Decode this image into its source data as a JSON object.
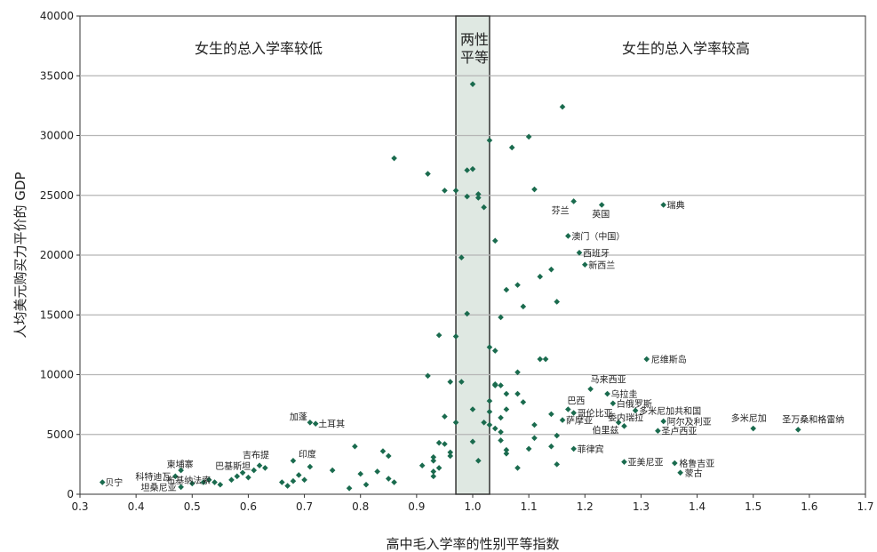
{
  "chart_data": {
    "type": "scatter",
    "xlabel": "高中毛入学率的性别平等指数",
    "ylabel": "人均美元购买力平价的 GDP",
    "xlim": [
      0.3,
      1.7
    ],
    "ylim": [
      0,
      40000
    ],
    "x_ticks": [
      "0.3",
      "0.4",
      "0.5",
      "0.6",
      "0.7",
      "0.8",
      "0.9",
      "1.0",
      "1.1",
      "1.2",
      "1.3",
      "1.4",
      "1.5",
      "1.6",
      "1.7"
    ],
    "y_ticks": [
      "0",
      "5000",
      "10000",
      "15000",
      "20000",
      "25000",
      "30000",
      "35000",
      "40000"
    ],
    "grid": "horizontal",
    "marker_color": "#1a6b4e",
    "band_color": "#dfe8e2",
    "parity_band": [
      0.97,
      1.03
    ],
    "region_labels": {
      "left": "女生的总入学率较低",
      "band_line1": "两性",
      "band_line2": "平等",
      "right": "女生的总入学率较高"
    },
    "labeled_points": [
      {
        "label": "贝宁",
        "x": 0.34,
        "y": 1000
      },
      {
        "label": "坦桑尼亚",
        "x": 0.48,
        "y": 600
      },
      {
        "label": "科特迪瓦",
        "x": 0.47,
        "y": 1500
      },
      {
        "label": "柬埔寨",
        "x": 0.48,
        "y": 2000
      },
      {
        "label": "布基纳法索",
        "x": 0.53,
        "y": 1200
      },
      {
        "label": "巴基斯坦",
        "x": 0.59,
        "y": 1800
      },
      {
        "label": "吉布提",
        "x": 0.62,
        "y": 2400
      },
      {
        "label": "印度",
        "x": 0.68,
        "y": 2800
      },
      {
        "label": "加蓬",
        "x": 0.71,
        "y": 6000
      },
      {
        "label": "土耳其",
        "x": 0.72,
        "y": 5900
      },
      {
        "label": "芬兰",
        "x": 1.18,
        "y": 24500
      },
      {
        "label": "英国",
        "x": 1.23,
        "y": 24200
      },
      {
        "label": "瑞典",
        "x": 1.34,
        "y": 24200
      },
      {
        "label": "澳门（中国）",
        "x": 1.17,
        "y": 21600
      },
      {
        "label": "西班牙",
        "x": 1.19,
        "y": 20200
      },
      {
        "label": "新西兰",
        "x": 1.2,
        "y": 19200
      },
      {
        "label": "尼维斯岛",
        "x": 1.31,
        "y": 11300
      },
      {
        "label": "马来西亚",
        "x": 1.21,
        "y": 8800
      },
      {
        "label": "乌拉圭",
        "x": 1.24,
        "y": 8400
      },
      {
        "label": "巴西",
        "x": 1.17,
        "y": 7100
      },
      {
        "label": "白俄罗斯",
        "x": 1.25,
        "y": 7600
      },
      {
        "label": "哥伦比亚",
        "x": 1.18,
        "y": 6800
      },
      {
        "label": "多米尼加共和国",
        "x": 1.29,
        "y": 7000
      },
      {
        "label": "萨摩亚",
        "x": 1.16,
        "y": 6200
      },
      {
        "label": "委内瑞拉",
        "x": 1.26,
        "y": 6000
      },
      {
        "label": "阿尔及利亚",
        "x": 1.34,
        "y": 6100
      },
      {
        "label": "伯里兹",
        "x": 1.27,
        "y": 5700
      },
      {
        "label": "圣卢西亚",
        "x": 1.33,
        "y": 5300
      },
      {
        "label": "多米尼加",
        "x": 1.5,
        "y": 5500
      },
      {
        "label": "圣万桑和格雷纳",
        "x": 1.58,
        "y": 5400
      },
      {
        "label": "菲律宾",
        "x": 1.18,
        "y": 3800
      },
      {
        "label": "亚美尼亚",
        "x": 1.27,
        "y": 2700
      },
      {
        "label": "格鲁吉亚",
        "x": 1.36,
        "y": 2600
      },
      {
        "label": "蒙古",
        "x": 1.37,
        "y": 1800
      }
    ],
    "points": [
      {
        "x": 0.5,
        "y": 900
      },
      {
        "x": 0.52,
        "y": 1000
      },
      {
        "x": 0.54,
        "y": 1000
      },
      {
        "x": 0.55,
        "y": 800
      },
      {
        "x": 0.57,
        "y": 1200
      },
      {
        "x": 0.58,
        "y": 1500
      },
      {
        "x": 0.6,
        "y": 1400
      },
      {
        "x": 0.61,
        "y": 2000
      },
      {
        "x": 0.63,
        "y": 2200
      },
      {
        "x": 0.66,
        "y": 1000
      },
      {
        "x": 0.67,
        "y": 700
      },
      {
        "x": 0.68,
        "y": 1100
      },
      {
        "x": 0.69,
        "y": 1600
      },
      {
        "x": 0.7,
        "y": 1200
      },
      {
        "x": 0.71,
        "y": 2300
      },
      {
        "x": 0.75,
        "y": 2000
      },
      {
        "x": 0.78,
        "y": 500
      },
      {
        "x": 0.79,
        "y": 4000
      },
      {
        "x": 0.8,
        "y": 1700
      },
      {
        "x": 0.81,
        "y": 800
      },
      {
        "x": 0.83,
        "y": 1900
      },
      {
        "x": 0.84,
        "y": 3600
      },
      {
        "x": 0.85,
        "y": 3200
      },
      {
        "x": 0.85,
        "y": 1300
      },
      {
        "x": 0.86,
        "y": 1000
      },
      {
        "x": 0.86,
        "y": 28100
      },
      {
        "x": 0.91,
        "y": 2400
      },
      {
        "x": 0.92,
        "y": 9900
      },
      {
        "x": 0.92,
        "y": 26800
      },
      {
        "x": 0.93,
        "y": 3100
      },
      {
        "x": 0.93,
        "y": 2800
      },
      {
        "x": 0.93,
        "y": 1900
      },
      {
        "x": 0.93,
        "y": 1500
      },
      {
        "x": 0.94,
        "y": 4300
      },
      {
        "x": 0.94,
        "y": 2200
      },
      {
        "x": 0.94,
        "y": 13300
      },
      {
        "x": 0.95,
        "y": 6500
      },
      {
        "x": 0.95,
        "y": 4200
      },
      {
        "x": 0.95,
        "y": 25400
      },
      {
        "x": 0.96,
        "y": 9400
      },
      {
        "x": 0.96,
        "y": 3500
      },
      {
        "x": 0.96,
        "y": 3200
      },
      {
        "x": 0.97,
        "y": 13200
      },
      {
        "x": 0.97,
        "y": 6000
      },
      {
        "x": 0.97,
        "y": 25400
      },
      {
        "x": 0.98,
        "y": 9400
      },
      {
        "x": 0.98,
        "y": 19800
      },
      {
        "x": 0.99,
        "y": 24900
      },
      {
        "x": 0.99,
        "y": 15100
      },
      {
        "x": 0.99,
        "y": 27100
      },
      {
        "x": 1.0,
        "y": 27200
      },
      {
        "x": 1.0,
        "y": 34300
      },
      {
        "x": 1.0,
        "y": 7100
      },
      {
        "x": 1.0,
        "y": 4400
      },
      {
        "x": 1.01,
        "y": 24800
      },
      {
        "x": 1.01,
        "y": 25100
      },
      {
        "x": 1.01,
        "y": 2800
      },
      {
        "x": 1.02,
        "y": 24000
      },
      {
        "x": 1.02,
        "y": 6000
      },
      {
        "x": 1.03,
        "y": 7800
      },
      {
        "x": 1.03,
        "y": 6900
      },
      {
        "x": 1.03,
        "y": 5800
      },
      {
        "x": 1.03,
        "y": 29600
      },
      {
        "x": 1.03,
        "y": 12300
      },
      {
        "x": 1.04,
        "y": 12000
      },
      {
        "x": 1.04,
        "y": 9100
      },
      {
        "x": 1.04,
        "y": 21200
      },
      {
        "x": 1.04,
        "y": 9200
      },
      {
        "x": 1.04,
        "y": 5500
      },
      {
        "x": 1.05,
        "y": 14800
      },
      {
        "x": 1.05,
        "y": 6400
      },
      {
        "x": 1.05,
        "y": 5200
      },
      {
        "x": 1.05,
        "y": 9100
      },
      {
        "x": 1.05,
        "y": 4500
      },
      {
        "x": 1.06,
        "y": 17100
      },
      {
        "x": 1.06,
        "y": 8400
      },
      {
        "x": 1.06,
        "y": 7100
      },
      {
        "x": 1.06,
        "y": 3700
      },
      {
        "x": 1.06,
        "y": 3400
      },
      {
        "x": 1.07,
        "y": 29000
      },
      {
        "x": 1.08,
        "y": 17500
      },
      {
        "x": 1.08,
        "y": 10200
      },
      {
        "x": 1.08,
        "y": 8400
      },
      {
        "x": 1.08,
        "y": 2200
      },
      {
        "x": 1.09,
        "y": 15700
      },
      {
        "x": 1.09,
        "y": 7700
      },
      {
        "x": 1.1,
        "y": 29900
      },
      {
        "x": 1.11,
        "y": 25500
      },
      {
        "x": 1.11,
        "y": 5800
      },
      {
        "x": 1.11,
        "y": 4700
      },
      {
        "x": 1.12,
        "y": 18200
      },
      {
        "x": 1.12,
        "y": 11300
      },
      {
        "x": 1.13,
        "y": 11300
      },
      {
        "x": 1.14,
        "y": 18800
      },
      {
        "x": 1.14,
        "y": 6700
      },
      {
        "x": 1.15,
        "y": 16100
      },
      {
        "x": 1.15,
        "y": 4900
      },
      {
        "x": 1.15,
        "y": 2500
      },
      {
        "x": 1.16,
        "y": 32400
      },
      {
        "x": 1.14,
        "y": 4000
      },
      {
        "x": 1.1,
        "y": 3800
      }
    ]
  }
}
